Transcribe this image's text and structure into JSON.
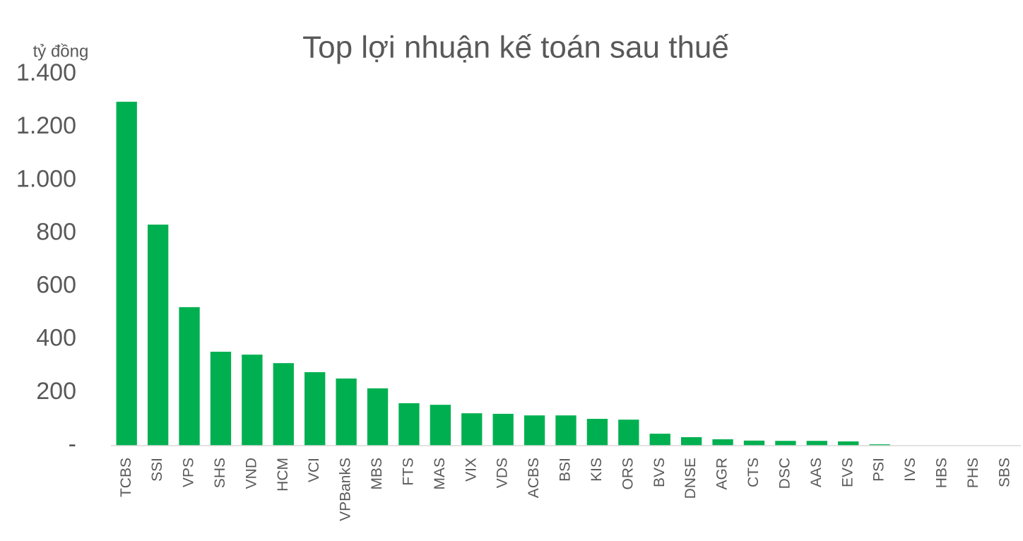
{
  "chart_data": {
    "type": "bar",
    "title": "Top lợi nhuận kế toán sau thuế",
    "y_label": "tỷ đồng",
    "categories": [
      "TCBS",
      "SSI",
      "VPS",
      "SHS",
      "VND",
      "HCM",
      "VCI",
      "VPBankS",
      "MBS",
      "FTS",
      "MAS",
      "VIX",
      "VDS",
      "ACBS",
      "BSI",
      "KIS",
      "ORS",
      "BVS",
      "DNSE",
      "AGR",
      "CTS",
      "DSC",
      "AAS",
      "EVS",
      "PSI",
      "IVS",
      "HBS",
      "PHS",
      "SBS"
    ],
    "values": [
      1296,
      833,
      522,
      354,
      343,
      311,
      277,
      253,
      216,
      160,
      154,
      122,
      120,
      114,
      114,
      101,
      98,
      45,
      32,
      24,
      19,
      18,
      18,
      16,
      5,
      0,
      0,
      0,
      0
    ],
    "color": "#00b050",
    "ylim": [
      0,
      1400
    ],
    "yticks": [
      {
        "value": 0,
        "label": "-"
      },
      200,
      400,
      600,
      800,
      {
        "value": 1000,
        "label": "1.000"
      },
      {
        "value": 1200,
        "label": "1.200"
      },
      {
        "value": 1400,
        "label": "1.400"
      }
    ],
    "grid": false
  }
}
